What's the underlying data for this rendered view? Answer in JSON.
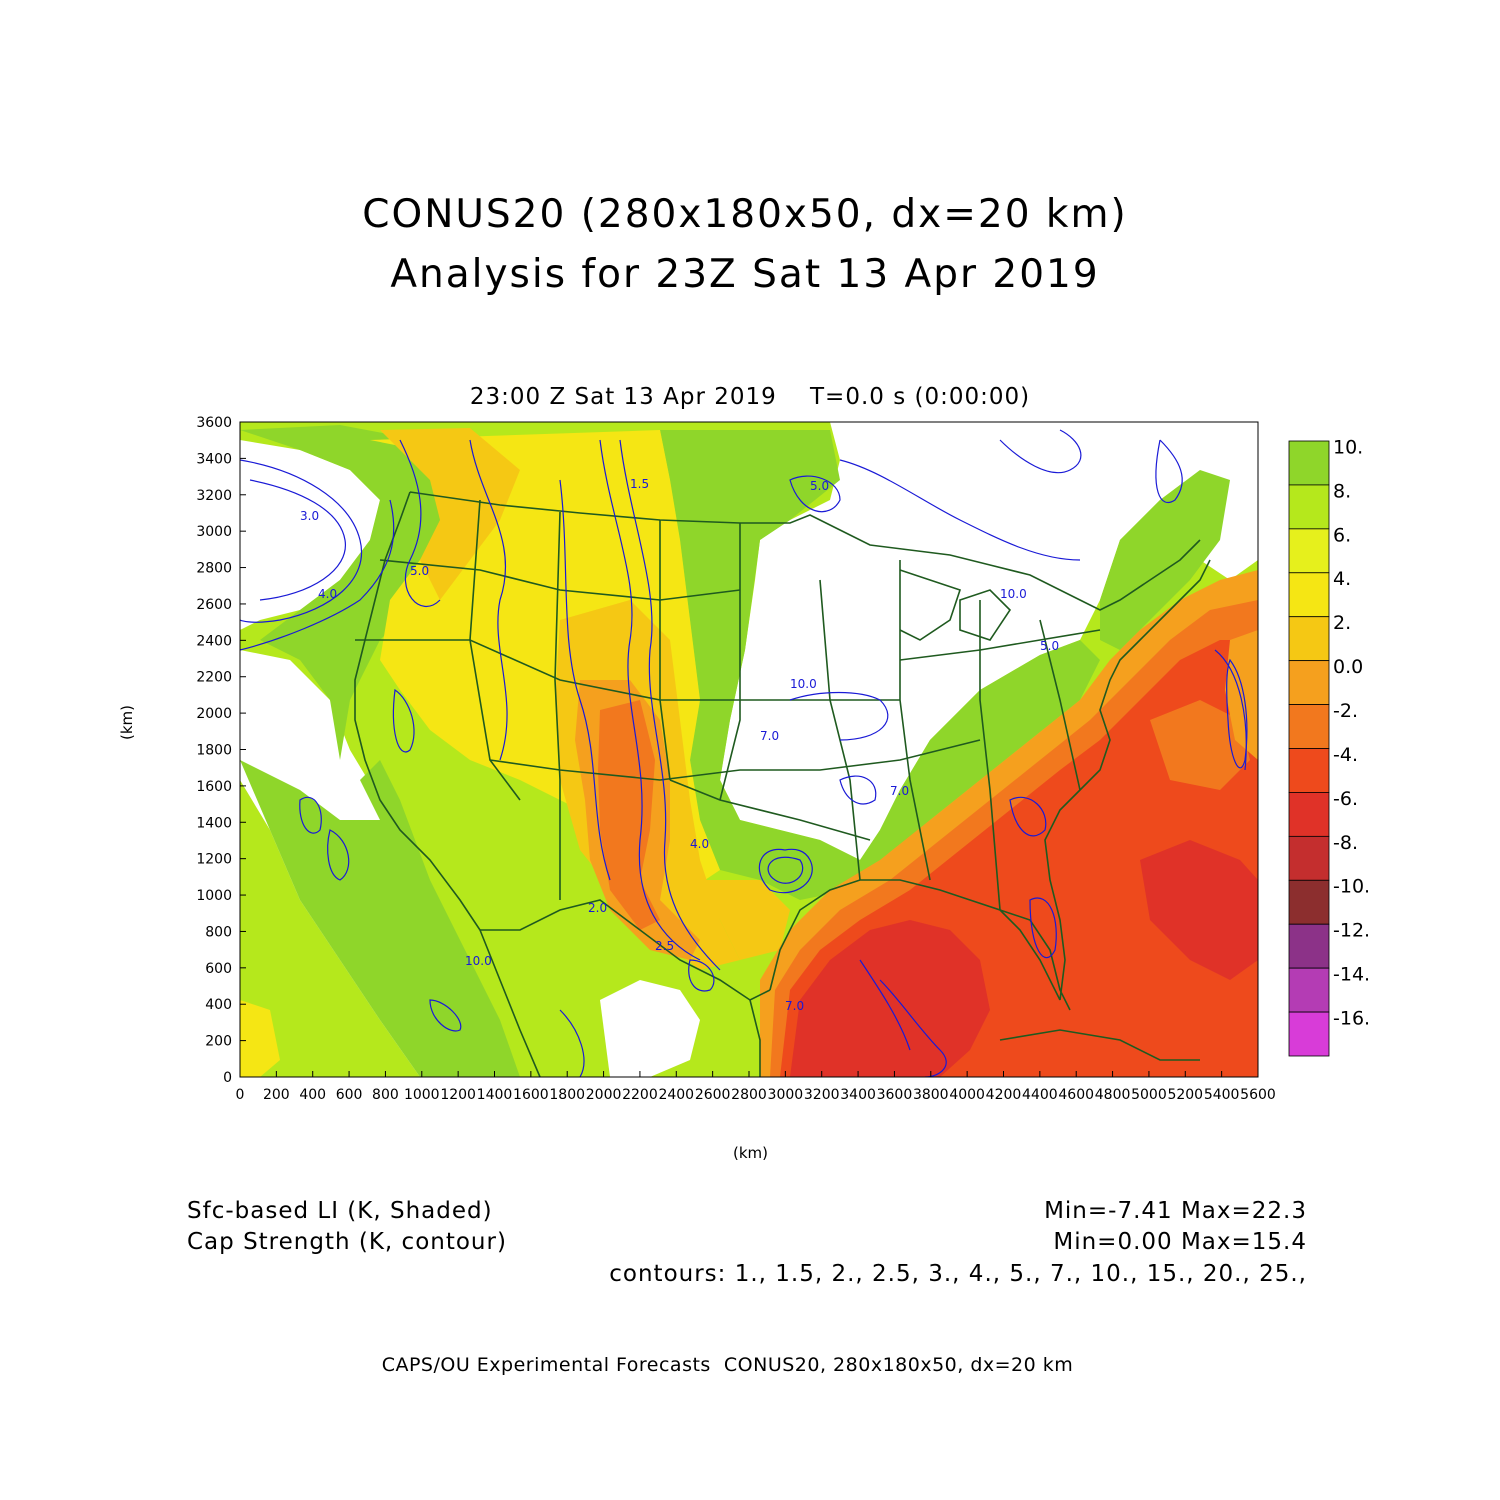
{
  "header": {
    "title_line1": "CONUS20 (280x180x50, dx=20 km)",
    "title_line2": "Analysis for 23Z Sat 13 Apr 2019",
    "subtitle": "23:00 Z Sat 13 Apr 2019    T=0.0 s (0:00:00)"
  },
  "axes": {
    "x_label": "(km)",
    "y_label": "(km)",
    "x_ticks": [
      "0",
      "200",
      "400",
      "600",
      "800",
      "1000",
      "1200",
      "1400",
      "1600",
      "1800",
      "2000",
      "2200",
      "2400",
      "2600",
      "2800",
      "3000",
      "3200",
      "3400",
      "3600",
      "3800",
      "4000",
      "4200",
      "4400",
      "4600",
      "4800",
      "5000",
      "5200",
      "5400",
      "5600"
    ],
    "y_ticks": [
      "0",
      "200",
      "400",
      "600",
      "800",
      "1000",
      "1200",
      "1400",
      "1600",
      "1800",
      "2000",
      "2200",
      "2400",
      "2600",
      "2800",
      "3000",
      "3200",
      "3400",
      "3600"
    ],
    "xlim": [
      0,
      5600
    ],
    "ylim": [
      0,
      3600
    ]
  },
  "colorbar": {
    "labels": [
      "10.",
      "8.",
      "6.",
      "4.",
      "2.",
      "0.0",
      "-2.",
      "-4.",
      "-6.",
      "-8.",
      "-10.",
      "-12.",
      "-14.",
      "-16."
    ],
    "colors": [
      "#8fd62a",
      "#b5e81c",
      "#e6f01c",
      "#f5e614",
      "#f5c814",
      "#f5a01e",
      "#f2781e",
      "#ee4a1c",
      "#e03228",
      "#c42e2e",
      "#8c2e2e",
      "#8c3288",
      "#b43cb4",
      "#d83cd8"
    ]
  },
  "contour_labels": [
    "3.0",
    "4.0",
    "5.0",
    "7.0",
    "10.0",
    "1.5",
    "2.0",
    "2.5"
  ],
  "legend": {
    "shaded": "Sfc-based LI (K, Shaded)",
    "contour": "Cap Strength (K, contour)",
    "shaded_range": "Min=-7.41 Max=22.3",
    "contour_range": "Min=0.00 Max=15.4",
    "contours": "contours: 1., 1.5, 2., 2.5, 3., 4., 5., 7., 10., 15., 20., 25.,"
  },
  "footer": "CAPS/OU Experimental Forecasts  CONUS20, 280x180x50, dx=20 km"
}
